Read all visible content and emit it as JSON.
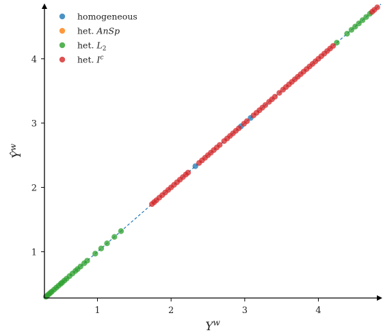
{
  "chart_data": {
    "type": "scatter",
    "xlabel": "Y^w",
    "ylabel": "Ŷ^w",
    "xlim": [
      0.28,
      4.85
    ],
    "ylim": [
      0.28,
      4.85
    ],
    "xticks": [
      "1",
      "2",
      "3",
      "4"
    ],
    "yticks": [
      "1",
      "2",
      "3",
      "4"
    ],
    "grid": false,
    "legend_position": "top-left",
    "reference_line": {
      "style": "dashed",
      "color": "#1f77b4",
      "from": [
        0.28,
        0.28
      ],
      "to": [
        4.85,
        4.85
      ]
    },
    "series": [
      {
        "name": "homogeneous",
        "color": "#1f77b4",
        "x": [
          2.33,
          2.95,
          3.08
        ],
        "y": [
          2.33,
          2.95,
          3.08
        ]
      },
      {
        "name": "het. AnSp",
        "color": "#ff7f0e",
        "x": [],
        "y": []
      },
      {
        "name": "het. L_2",
        "color": "#2ca02c",
        "x": [
          0.3,
          0.32,
          0.34,
          0.36,
          0.38,
          0.41,
          0.44,
          0.47,
          0.5,
          0.52,
          0.55,
          0.58,
          0.62,
          0.66,
          0.7,
          0.73,
          0.77,
          0.82,
          0.86,
          0.97,
          1.05,
          1.13,
          1.23,
          1.32,
          4.25,
          4.39,
          4.45,
          4.5,
          4.55,
          4.6,
          4.65,
          4.7
        ],
        "y": [
          0.3,
          0.32,
          0.34,
          0.36,
          0.38,
          0.41,
          0.44,
          0.47,
          0.5,
          0.52,
          0.55,
          0.58,
          0.62,
          0.66,
          0.7,
          0.73,
          0.77,
          0.82,
          0.86,
          0.97,
          1.05,
          1.13,
          1.23,
          1.32,
          4.25,
          4.39,
          4.45,
          4.5,
          4.55,
          4.6,
          4.65,
          4.7
        ]
      },
      {
        "name": "het. I^c",
        "color": "#d62728",
        "x": [
          1.74,
          1.77,
          1.8,
          1.84,
          1.88,
          1.92,
          1.96,
          2.0,
          2.04,
          2.08,
          2.12,
          2.16,
          2.2,
          2.23,
          2.38,
          2.42,
          2.46,
          2.5,
          2.54,
          2.58,
          2.62,
          2.66,
          2.72,
          2.76,
          2.8,
          2.84,
          2.88,
          2.92,
          2.99,
          3.03,
          3.12,
          3.16,
          3.2,
          3.24,
          3.28,
          3.33,
          3.37,
          3.41,
          3.47,
          3.52,
          3.56,
          3.6,
          3.64,
          3.68,
          3.72,
          3.76,
          3.8,
          3.84,
          3.88,
          3.92,
          3.96,
          4.0,
          4.04,
          4.08,
          4.12,
          4.16,
          4.2,
          4.73,
          4.76,
          4.8
        ],
        "y": [
          1.74,
          1.77,
          1.8,
          1.84,
          1.88,
          1.92,
          1.96,
          2.0,
          2.04,
          2.08,
          2.12,
          2.16,
          2.2,
          2.23,
          2.38,
          2.42,
          2.46,
          2.5,
          2.54,
          2.58,
          2.62,
          2.66,
          2.72,
          2.76,
          2.8,
          2.84,
          2.88,
          2.92,
          2.99,
          3.03,
          3.12,
          3.16,
          3.2,
          3.24,
          3.28,
          3.33,
          3.37,
          3.41,
          3.47,
          3.52,
          3.56,
          3.6,
          3.64,
          3.68,
          3.72,
          3.76,
          3.8,
          3.84,
          3.88,
          3.92,
          3.96,
          4.0,
          4.04,
          4.08,
          4.12,
          4.16,
          4.2,
          4.73,
          4.76,
          4.8
        ]
      }
    ],
    "legend": [
      {
        "label": "homogeneous",
        "color": "#1f77b4"
      },
      {
        "label": "het. AnSp",
        "color": "#ff7f0e"
      },
      {
        "label": "het. L2",
        "color": "#2ca02c"
      },
      {
        "label": "het. Ic",
        "color": "#d62728"
      }
    ]
  }
}
